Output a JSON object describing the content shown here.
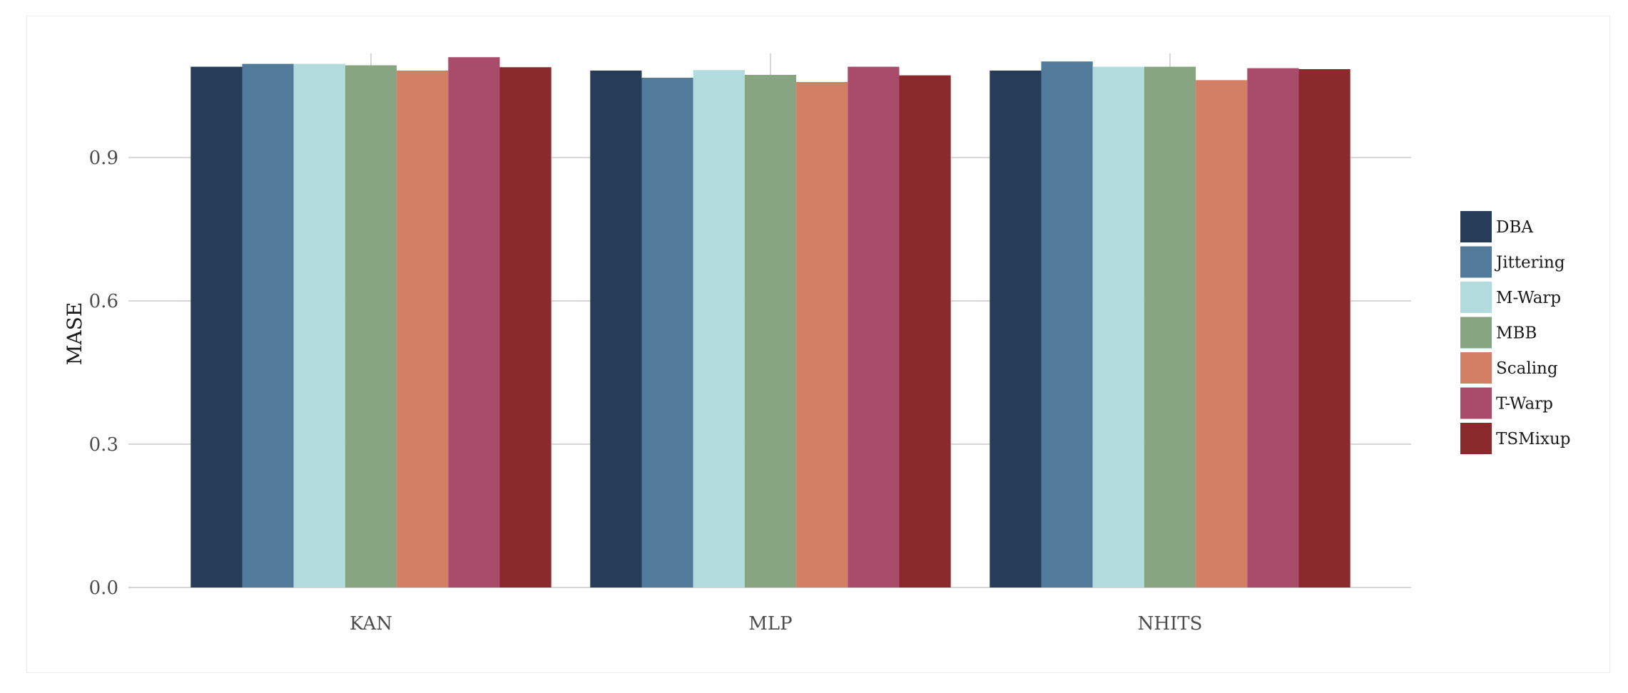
{
  "chart_data": {
    "type": "bar",
    "title": "",
    "xlabel": "",
    "ylabel": "MASE",
    "categories": [
      "KAN",
      "MLP",
      "NHITS"
    ],
    "series": [
      {
        "name": "DBA",
        "color": "#263c59",
        "values": [
          1.09,
          1.082,
          1.082
        ]
      },
      {
        "name": "Jittering",
        "color": "#527a9b",
        "values": [
          1.096,
          1.067,
          1.101
        ]
      },
      {
        "name": "M-Warp",
        "color": "#b2dbde",
        "values": [
          1.096,
          1.083,
          1.09
        ]
      },
      {
        "name": "MBB",
        "color": "#86a580",
        "values": [
          1.093,
          1.073,
          1.09
        ]
      },
      {
        "name": "Scaling",
        "color": "#d37f65",
        "values": [
          1.082,
          1.058,
          1.062
        ]
      },
      {
        "name": "T-Warp",
        "color": "#a94b6b",
        "values": [
          1.11,
          1.09,
          1.087
        ]
      },
      {
        "name": "TSMixup",
        "color": "#8b2a2c",
        "values": [
          1.089,
          1.072,
          1.085
        ]
      }
    ],
    "yticks": [
      "0.0",
      "0.3",
      "0.6",
      "0.9"
    ],
    "ylim": [
      0,
      1.17
    ],
    "grid": true,
    "legend": "right"
  }
}
